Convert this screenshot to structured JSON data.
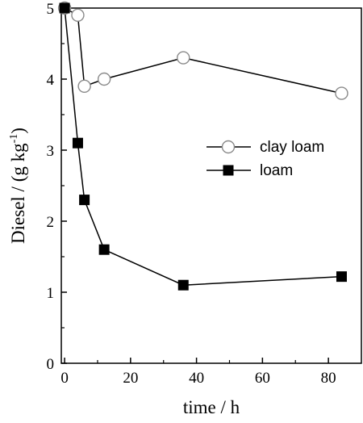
{
  "chart_data": {
    "type": "line",
    "title": "",
    "xlabel": "time / h",
    "ylabel_main": "Diesel / (g kg",
    "ylabel_exp": "-1",
    "ylabel_close": ")",
    "xlim": [
      -1,
      90
    ],
    "ylim": [
      0,
      5
    ],
    "xticks": [
      0,
      20,
      40,
      60,
      80
    ],
    "yticks": [
      0,
      1,
      2,
      3,
      4,
      5
    ],
    "grid": false,
    "legend_position": "right-middle",
    "series": [
      {
        "name": "clay loam",
        "marker": "open-circle",
        "color": "#000000",
        "x": [
          0,
          4,
          6,
          12,
          36,
          84
        ],
        "y": [
          5.0,
          4.9,
          3.9,
          4.0,
          4.3,
          3.8
        ]
      },
      {
        "name": "loam",
        "marker": "filled-square",
        "color": "#000000",
        "x": [
          0,
          4,
          6,
          12,
          36,
          84
        ],
        "y": [
          5.0,
          3.1,
          2.3,
          1.6,
          1.1,
          1.22
        ]
      }
    ]
  }
}
